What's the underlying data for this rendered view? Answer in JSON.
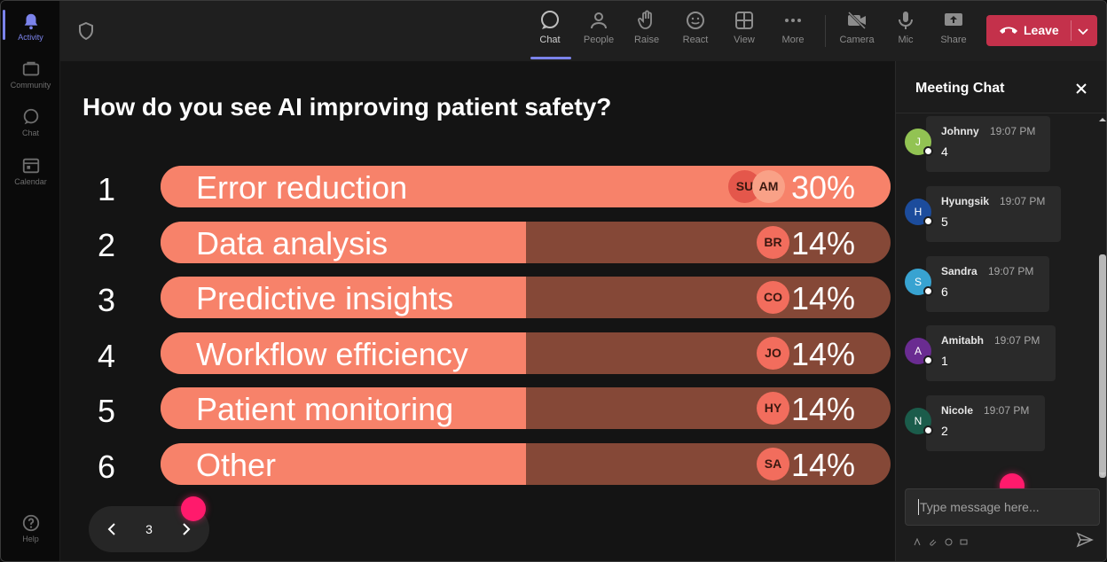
{
  "rail": {
    "items": [
      {
        "label": "Activity",
        "active": true
      },
      {
        "label": "Community",
        "active": false
      },
      {
        "label": "Chat",
        "active": false
      },
      {
        "label": "Calendar",
        "active": false
      }
    ],
    "help_label": "Help"
  },
  "toolbar": {
    "chat": "Chat",
    "people": "People",
    "raise": "Raise",
    "react": "React",
    "view": "View",
    "more": "More",
    "camera": "Camera",
    "mic": "Mic",
    "share": "Share",
    "leave": "Leave"
  },
  "poll": {
    "question": "How do you see AI improving patient safety?",
    "options": [
      {
        "num": "1",
        "label": "Error reduction",
        "pct": "30%",
        "fraction": 0.3,
        "avatars": [
          "SU",
          "AM"
        ]
      },
      {
        "num": "2",
        "label": "Data analysis",
        "pct": "14%",
        "fraction": 0.14,
        "avatars": [
          "BR"
        ]
      },
      {
        "num": "3",
        "label": "Predictive insights",
        "pct": "14%",
        "fraction": 0.14,
        "avatars": [
          "CO"
        ]
      },
      {
        "num": "4",
        "label": "Workflow efficiency",
        "pct": "14%",
        "fraction": 0.14,
        "avatars": [
          "JO"
        ]
      },
      {
        "num": "5",
        "label": "Patient monitoring",
        "pct": "14%",
        "fraction": 0.14,
        "avatars": [
          "HY"
        ]
      },
      {
        "num": "6",
        "label": "Other",
        "pct": "14%",
        "fraction": 0.14,
        "avatars": [
          "SA"
        ]
      }
    ],
    "page": "3"
  },
  "chat": {
    "title": "Meeting Chat",
    "messages": [
      {
        "initial": "J",
        "name": "Johnny",
        "time": "19:07 PM",
        "text": "4",
        "color": "#92c353"
      },
      {
        "initial": "H",
        "name": "Hyungsik",
        "time": "19:07 PM",
        "text": "5",
        "color": "#1c4c9c"
      },
      {
        "initial": "S",
        "name": "Sandra",
        "time": "19:07 PM",
        "text": "6",
        "color": "#38a3d1"
      },
      {
        "initial": "A",
        "name": "Amitabh",
        "time": "19:07 PM",
        "text": "1",
        "color": "#6a2c91"
      },
      {
        "initial": "N",
        "name": "Nicole",
        "time": "19:07 PM",
        "text": "2",
        "color": "#1b5c4b"
      }
    ],
    "placeholder": "Type message here..."
  },
  "colors": {
    "bar_fill": "#f7826a",
    "bar_track": "#854837",
    "leave": "#c4314b",
    "accent": "#7b83eb",
    "pointer": "#ff1a6c"
  }
}
